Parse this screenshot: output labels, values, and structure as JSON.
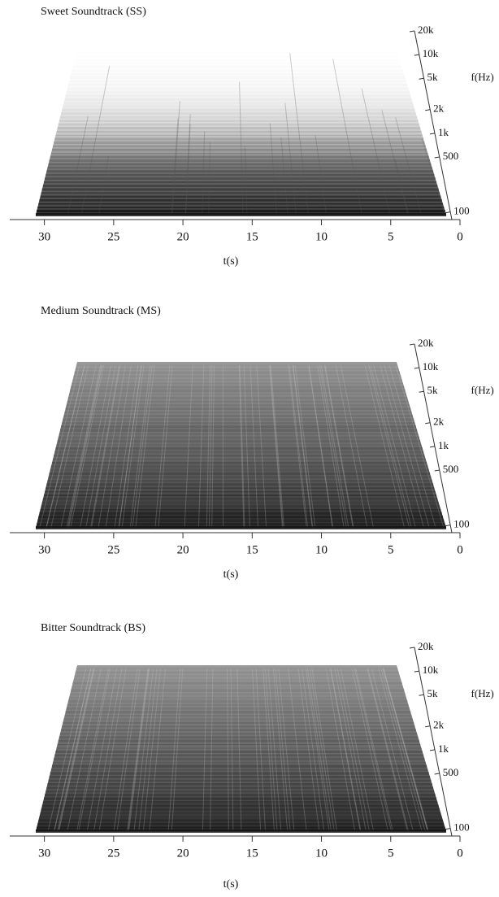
{
  "chart_data": [
    {
      "type": "spectrogram",
      "title": "Sweet Soundtrack (SS)",
      "xlabel": "t(s)",
      "ylabel": "f(Hz)",
      "xlim": [
        32.5,
        0
      ],
      "xticks": [
        30,
        25,
        20,
        15,
        10,
        5,
        0
      ],
      "ylim": [
        80,
        20000
      ],
      "log_y": true,
      "yticks": [
        100,
        500,
        {
          "value": 1000,
          "label": "1k"
        },
        {
          "value": 2000,
          "label": "2k"
        },
        {
          "value": 5000,
          "label": "5k"
        },
        {
          "value": 10000,
          "label": "10k"
        },
        {
          "value": 20000,
          "label": "20k"
        }
      ]
    },
    {
      "type": "spectrogram",
      "title": "Medium Soundtrack (MS)",
      "xlabel": "t(s)",
      "ylabel": "f(Hz)",
      "xlim": [
        32.5,
        0
      ],
      "xticks": [
        30,
        25,
        20,
        15,
        10,
        5,
        0
      ],
      "ylim": [
        80,
        20000
      ],
      "log_y": true,
      "yticks": [
        100,
        500,
        {
          "value": 1000,
          "label": "1k"
        },
        {
          "value": 2000,
          "label": "2k"
        },
        {
          "value": 5000,
          "label": "5k"
        },
        {
          "value": 10000,
          "label": "10k"
        },
        {
          "value": 20000,
          "label": "20k"
        }
      ]
    },
    {
      "type": "spectrogram",
      "title": "Bitter Soundtrack (BS)",
      "xlabel": "t(s)",
      "ylabel": "f(Hz)",
      "xlim": [
        32.5,
        0
      ],
      "xticks": [
        30,
        25,
        20,
        15,
        10,
        5,
        0
      ],
      "ylim": [
        80,
        20000
      ],
      "log_y": true,
      "yticks": [
        100,
        500,
        {
          "value": 1000,
          "label": "1k"
        },
        {
          "value": 2000,
          "label": "2k"
        },
        {
          "value": 5000,
          "label": "5k"
        },
        {
          "value": 10000,
          "label": "10k"
        },
        {
          "value": 20000,
          "label": "20k"
        }
      ]
    }
  ]
}
